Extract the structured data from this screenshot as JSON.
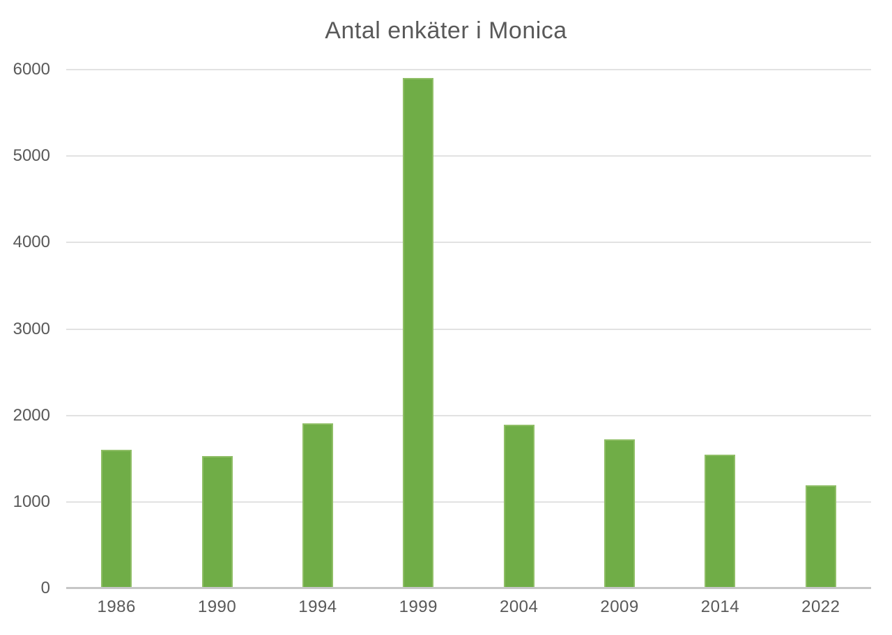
{
  "chart": {
    "colors": {
      "background": "#FFFFFF",
      "bar_fill": "#70AD47",
      "bar_border": "#8FBE66",
      "gridline": "#E2E2E2",
      "axis_line": "#C6C6C6",
      "label_text": "#595959",
      "title_text": "#595959"
    }
  },
  "chart_data": {
    "type": "bar",
    "title": "Antal enkäter i Monica",
    "categories": [
      "1986",
      "1990",
      "1994",
      "1999",
      "2004",
      "2009",
      "2014",
      "2022"
    ],
    "values": [
      1600,
      1530,
      1910,
      5900,
      1890,
      1720,
      1550,
      1190
    ],
    "xlabel": "",
    "ylabel": "",
    "ylim": [
      0,
      6000
    ],
    "yticks": [
      0,
      1000,
      2000,
      3000,
      4000,
      5000,
      6000
    ],
    "grid": true,
    "legend_position": "none"
  }
}
